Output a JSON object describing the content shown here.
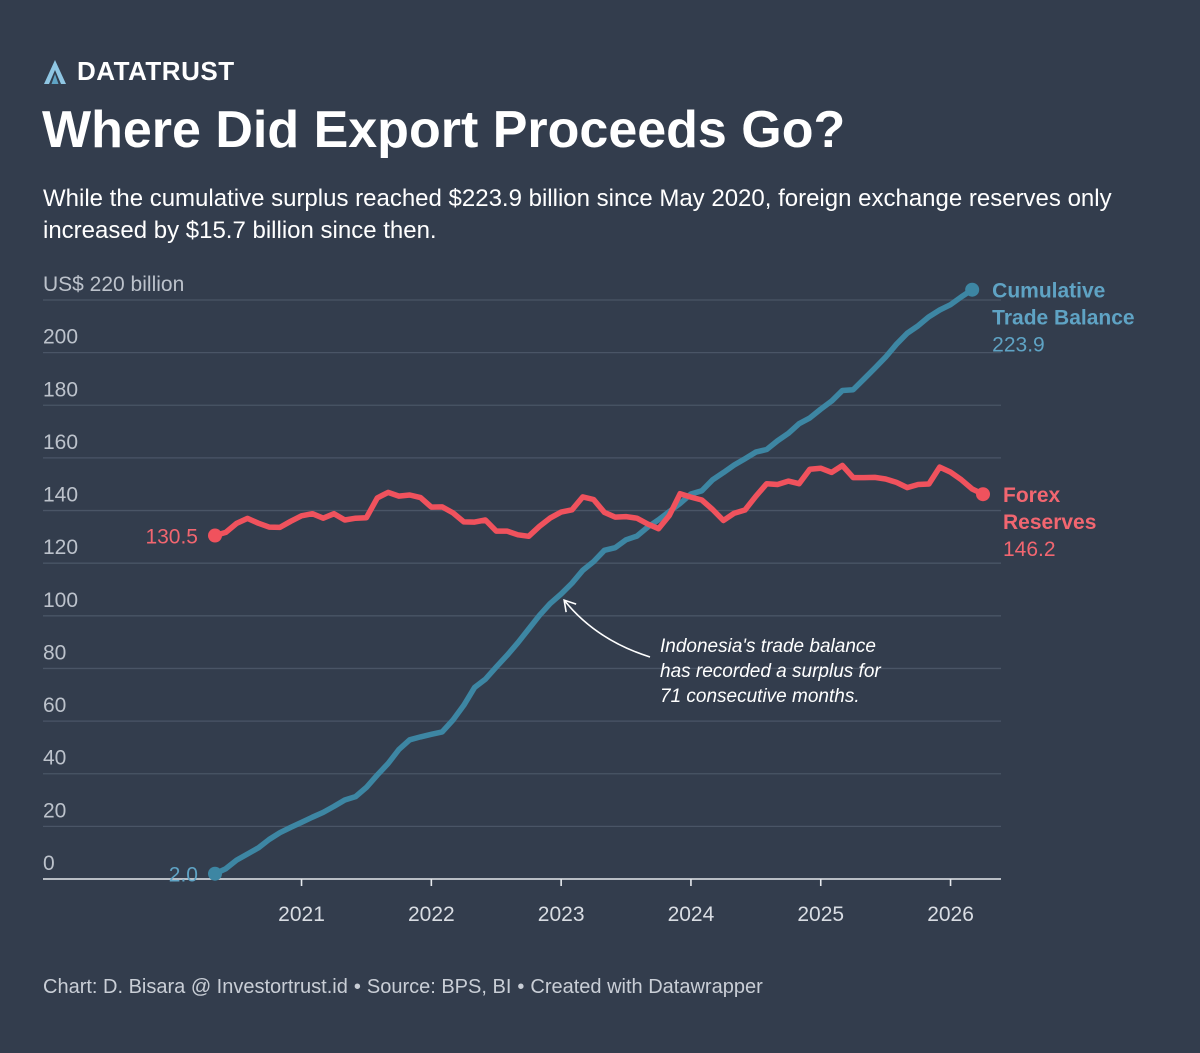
{
  "brand": {
    "name": "DATATRUST"
  },
  "header": {
    "title": "Where Did Export Proceeds Go?",
    "subtitle": "While the cumulative surplus reached $223.9 billion since May 2020, foreign exchange reserves only increased by $15.7 billion since then."
  },
  "footer": {
    "chart_credit": "Chart: D. Bisara @ Investortrust.id",
    "source": "Source: BPS, BI",
    "tool": "Created with Datawrapper",
    "separator": "•"
  },
  "colors": {
    "background": "#333d4d",
    "trade_balance": "#3d86a3",
    "trade_balance_label": "#5fa3c4",
    "forex": "#f0525d",
    "forex_label": "#f26670",
    "grid": "#4a5566",
    "axis_text": "#bcc2cb"
  },
  "chart_data": {
    "type": "line",
    "unit_label": "US$ 220 billion",
    "ylim": [
      0,
      220
    ],
    "y_ticks": [
      0,
      20,
      40,
      60,
      80,
      100,
      120,
      140,
      160,
      180,
      200,
      220
    ],
    "y_tick_labels": [
      "0",
      "20",
      "40",
      "60",
      "80",
      "100",
      "120",
      "140",
      "160",
      "180",
      "200",
      "US$ 220 billion"
    ],
    "xlim": [
      "2020-05",
      "2026-04"
    ],
    "x_ticks": [
      "2021-01",
      "2022-01",
      "2023-01",
      "2024-01",
      "2025-01",
      "2026-01"
    ],
    "x_tick_labels": [
      "2021",
      "2022",
      "2023",
      "2024",
      "2025",
      "2026"
    ],
    "grid": "horizontal",
    "series": [
      {
        "key": "trade_balance",
        "label_lines": [
          "Cumulative",
          "Trade Balance"
        ],
        "start_label": "2.0",
        "end_label": "223.9",
        "points": [
          [
            "2020-05",
            2.0
          ],
          [
            "2020-06",
            3.9
          ],
          [
            "2020-07",
            7.2
          ],
          [
            "2020-08",
            9.5
          ],
          [
            "2020-09",
            11.8
          ],
          [
            "2020-10",
            15.0
          ],
          [
            "2020-11",
            17.6
          ],
          [
            "2020-12",
            19.6
          ],
          [
            "2021-01",
            21.5
          ],
          [
            "2021-02",
            23.5
          ],
          [
            "2021-03",
            25.3
          ],
          [
            "2021-04",
            27.6
          ],
          [
            "2021-05",
            30.0
          ],
          [
            "2021-06",
            31.3
          ],
          [
            "2021-07",
            34.8
          ],
          [
            "2021-08",
            39.5
          ],
          [
            "2021-09",
            43.9
          ],
          [
            "2021-10",
            49.2
          ],
          [
            "2021-11",
            52.9
          ],
          [
            "2021-12",
            54.0
          ],
          [
            "2022-01",
            55.0
          ],
          [
            "2022-02",
            55.9
          ],
          [
            "2022-03",
            60.4
          ],
          [
            "2022-04",
            66.0
          ],
          [
            "2022-05",
            72.8
          ],
          [
            "2022-06",
            75.9
          ],
          [
            "2022-07",
            80.5
          ],
          [
            "2022-08",
            85.0
          ],
          [
            "2022-09",
            89.8
          ],
          [
            "2022-10",
            95.0
          ],
          [
            "2022-11",
            100.2
          ],
          [
            "2022-12",
            104.7
          ],
          [
            "2023-01",
            108.3
          ],
          [
            "2023-02",
            112.4
          ],
          [
            "2023-03",
            117.3
          ],
          [
            "2023-04",
            120.6
          ],
          [
            "2023-05",
            124.9
          ],
          [
            "2023-06",
            125.9
          ],
          [
            "2023-07",
            128.9
          ],
          [
            "2023-08",
            130.3
          ],
          [
            "2023-09",
            133.7
          ],
          [
            "2023-10",
            136.5
          ],
          [
            "2023-11",
            139.6
          ],
          [
            "2023-12",
            142.7
          ],
          [
            "2024-01",
            146.3
          ],
          [
            "2024-02",
            147.5
          ],
          [
            "2024-03",
            151.7
          ],
          [
            "2024-04",
            154.4
          ],
          [
            "2024-05",
            157.3
          ],
          [
            "2024-06",
            159.7
          ],
          [
            "2024-07",
            162.2
          ],
          [
            "2024-08",
            163.2
          ],
          [
            "2024-09",
            166.5
          ],
          [
            "2024-10",
            169.3
          ],
          [
            "2024-11",
            173.0
          ],
          [
            "2024-12",
            175.2
          ],
          [
            "2025-01",
            178.5
          ],
          [
            "2025-02",
            181.6
          ],
          [
            "2025-03",
            185.6
          ],
          [
            "2025-04",
            185.9
          ],
          [
            "2025-05",
            190.0
          ],
          [
            "2025-06",
            194.1
          ],
          [
            "2025-07",
            198.3
          ],
          [
            "2025-08",
            203.2
          ],
          [
            "2025-09",
            207.4
          ],
          [
            "2025-10",
            210.2
          ],
          [
            "2025-11",
            213.6
          ],
          [
            "2025-12",
            216.2
          ],
          [
            "2026-01",
            218.2
          ],
          [
            "2026-02",
            221.2
          ],
          [
            "2026-03",
            223.9
          ]
        ]
      },
      {
        "key": "forex",
        "label_lines": [
          "Forex",
          "Reserves"
        ],
        "start_label": "130.5",
        "end_label": "146.2",
        "points": [
          [
            "2020-05",
            130.5
          ],
          [
            "2020-06",
            131.7
          ],
          [
            "2020-07",
            135.1
          ],
          [
            "2020-08",
            137.0
          ],
          [
            "2020-09",
            135.2
          ],
          [
            "2020-10",
            133.7
          ],
          [
            "2020-11",
            133.6
          ],
          [
            "2020-12",
            135.9
          ],
          [
            "2021-01",
            138.0
          ],
          [
            "2021-02",
            138.8
          ],
          [
            "2021-03",
            137.1
          ],
          [
            "2021-04",
            138.8
          ],
          [
            "2021-05",
            136.4
          ],
          [
            "2021-06",
            137.1
          ],
          [
            "2021-07",
            137.3
          ],
          [
            "2021-08",
            144.8
          ],
          [
            "2021-09",
            146.9
          ],
          [
            "2021-10",
            145.5
          ],
          [
            "2021-11",
            145.9
          ],
          [
            "2021-12",
            144.9
          ],
          [
            "2022-01",
            141.3
          ],
          [
            "2022-02",
            141.4
          ],
          [
            "2022-03",
            139.1
          ],
          [
            "2022-04",
            135.7
          ],
          [
            "2022-05",
            135.6
          ],
          [
            "2022-06",
            136.4
          ],
          [
            "2022-07",
            132.2
          ],
          [
            "2022-08",
            132.2
          ],
          [
            "2022-09",
            130.8
          ],
          [
            "2022-10",
            130.2
          ],
          [
            "2022-11",
            134.0
          ],
          [
            "2022-12",
            137.2
          ],
          [
            "2023-01",
            139.4
          ],
          [
            "2023-02",
            140.3
          ],
          [
            "2023-03",
            145.2
          ],
          [
            "2023-04",
            144.2
          ],
          [
            "2023-05",
            139.3
          ],
          [
            "2023-06",
            137.5
          ],
          [
            "2023-07",
            137.7
          ],
          [
            "2023-08",
            137.1
          ],
          [
            "2023-09",
            134.9
          ],
          [
            "2023-10",
            133.1
          ],
          [
            "2023-11",
            138.1
          ],
          [
            "2023-12",
            146.4
          ],
          [
            "2024-01",
            145.1
          ],
          [
            "2024-02",
            144.0
          ],
          [
            "2024-03",
            140.4
          ],
          [
            "2024-04",
            136.2
          ],
          [
            "2024-05",
            139.0
          ],
          [
            "2024-06",
            140.2
          ],
          [
            "2024-07",
            145.4
          ],
          [
            "2024-08",
            150.2
          ],
          [
            "2024-09",
            149.9
          ],
          [
            "2024-10",
            151.2
          ],
          [
            "2024-11",
            150.2
          ],
          [
            "2024-12",
            155.7
          ],
          [
            "2025-01",
            156.1
          ],
          [
            "2025-02",
            154.5
          ],
          [
            "2025-03",
            157.1
          ],
          [
            "2025-04",
            152.5
          ],
          [
            "2025-05",
            152.5
          ],
          [
            "2025-06",
            152.6
          ],
          [
            "2025-07",
            152.0
          ],
          [
            "2025-08",
            150.7
          ],
          [
            "2025-09",
            148.7
          ],
          [
            "2025-10",
            149.9
          ],
          [
            "2025-11",
            150.1
          ],
          [
            "2025-12",
            156.5
          ],
          [
            "2026-01",
            154.6
          ],
          [
            "2026-02",
            151.7
          ],
          [
            "2026-03",
            148.2
          ],
          [
            "2026-04",
            146.2
          ]
        ]
      }
    ],
    "annotation": {
      "lines": [
        "Indonesia's trade balance",
        "has recorded a surplus for",
        "71 consecutive months."
      ],
      "arrow_to": [
        "2023-01",
        109
      ]
    }
  }
}
